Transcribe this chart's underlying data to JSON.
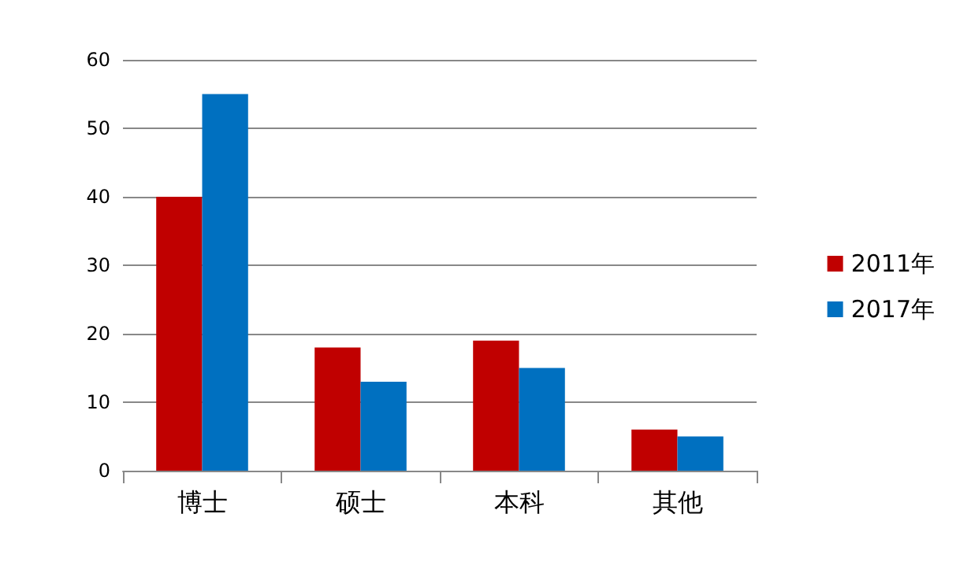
{
  "chart_data": {
    "type": "bar",
    "categories": [
      "博士",
      "硕士",
      "本科",
      "其他"
    ],
    "series": [
      {
        "name": "2011年",
        "color": "#c00000",
        "values": [
          40,
          18,
          19,
          6
        ]
      },
      {
        "name": "2017年",
        "color": "#0070c0",
        "values": [
          55,
          13,
          15,
          5
        ]
      }
    ],
    "ylim": [
      0,
      60
    ],
    "yticks": [
      0,
      10,
      20,
      30,
      40,
      50,
      60
    ],
    "grid": "y",
    "legend": "right"
  }
}
